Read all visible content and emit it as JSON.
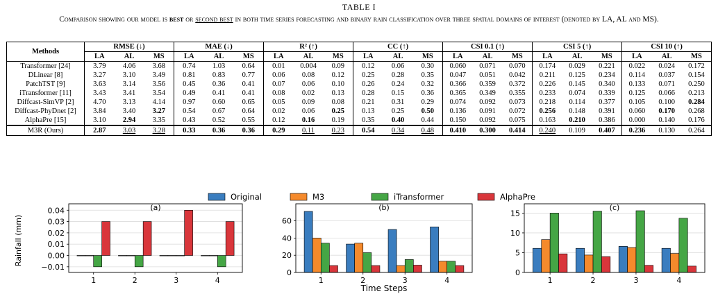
{
  "table": {
    "number": "TABLE I",
    "caption": {
      "p1": "Comparison showing our model is ",
      "best": "best",
      "p2": " or ",
      "second": "second best",
      "p3": " in both time series forecasting and binary rain classification over three spatial domains of interest (denoted by LA, AL and MS)."
    },
    "methods_header": "Methods",
    "metrics": [
      "RMSE (↓)",
      "MAE (↓)",
      "R² (↑)",
      "CC (↑)",
      "CSI 0.1 (↑)",
      "CSI 5 (↑)",
      "CSI 10 (↑)"
    ],
    "domains": [
      "LA",
      "AL",
      "MS"
    ],
    "rows": [
      {
        "method": "Transformer [24]",
        "values": [
          "3.79",
          "4.06",
          "3.68",
          "0.74",
          "1.03",
          "0.64",
          "0.01",
          "0.004",
          "0.09",
          "0.12",
          "0.06",
          "0.30",
          "0.060",
          "0.071",
          "0.070",
          "0.174",
          "0.029",
          "0.221",
          "0.022",
          "0.024",
          "0.172"
        ],
        "style": [
          "",
          "",
          "",
          "",
          "",
          "",
          "",
          "",
          "",
          "",
          "",
          "",
          "",
          "",
          "",
          "",
          "",
          "",
          "",
          "",
          ""
        ]
      },
      {
        "method": "DLinear [8]",
        "values": [
          "3.27",
          "3.10",
          "3.49",
          "0.81",
          "0.83",
          "0.77",
          "0.06",
          "0.08",
          "0.12",
          "0.25",
          "0.28",
          "0.35",
          "0.047",
          "0.051",
          "0.042",
          "0.211",
          "0.125",
          "0.234",
          "0.114",
          "0.037",
          "0.154"
        ],
        "style": [
          "",
          "",
          "",
          "",
          "",
          "",
          "",
          "",
          "",
          "",
          "",
          "",
          "",
          "",
          "",
          "",
          "",
          "",
          "",
          "",
          ""
        ]
      },
      {
        "method": "PatchTST [9]",
        "values": [
          "3.63",
          "3.14",
          "3.56",
          "0.45",
          "0.36",
          "0.41",
          "0.07",
          "0.06",
          "0.10",
          "0.26",
          "0.24",
          "0.32",
          "0.366",
          "0.359",
          "0.372",
          "0.226",
          "0.145",
          "0.340",
          "0.133",
          "0.071",
          "0.250"
        ],
        "style": [
          "",
          "",
          "",
          "",
          "",
          "",
          "",
          "",
          "",
          "",
          "",
          "",
          "",
          "",
          "",
          "",
          "",
          "",
          "",
          "",
          ""
        ]
      },
      {
        "method": "iTransformer [11]",
        "values": [
          "3.43",
          "3.41",
          "3.54",
          "0.49",
          "0.41",
          "0.41",
          "0.08",
          "0.02",
          "0.13",
          "0.28",
          "0.15",
          "0.36",
          "0.365",
          "0.349",
          "0.355",
          "0.233",
          "0.074",
          "0.339",
          "0.125",
          "0.066",
          "0.213"
        ],
        "style": [
          "",
          "",
          "",
          "",
          "",
          "",
          "",
          "",
          "",
          "",
          "",
          "",
          "",
          "",
          "",
          "",
          "",
          "",
          "",
          "",
          ""
        ]
      },
      {
        "method": "Diffcast-SimVP [2]",
        "values": [
          "4.70",
          "3.13",
          "4.14",
          "0.97",
          "0.60",
          "0.65",
          "0.05",
          "0.09",
          "0.08",
          "0.21",
          "0.31",
          "0.29",
          "0.074",
          "0.092",
          "0.073",
          "0.218",
          "0.114",
          "0.377",
          "0.105",
          "0.100",
          "0.284"
        ],
        "style": [
          "",
          "",
          "",
          "",
          "",
          "",
          "",
          "",
          "",
          "",
          "",
          "",
          "",
          "",
          "",
          "",
          "",
          "",
          "",
          "",
          "b"
        ]
      },
      {
        "method": "Diffcast-PhyDnet [2]",
        "values": [
          "3.84",
          "3.40",
          "3.27",
          "0.54",
          "0.67",
          "0.64",
          "0.02",
          "0.06",
          "0.25",
          "0.13",
          "0.25",
          "0.50",
          "0.136",
          "0.091",
          "0.072",
          "0.256",
          "0.148",
          "0.391",
          "0.060",
          "0.170",
          "0.268"
        ],
        "style": [
          "",
          "",
          "b",
          "",
          "",
          "",
          "",
          "",
          "b",
          "",
          "",
          "b",
          "",
          "",
          "",
          "b",
          "",
          "",
          "",
          "b",
          ""
        ]
      },
      {
        "method": "AlphaPre [15]",
        "values": [
          "3.10",
          "2.94",
          "3.35",
          "0.43",
          "0.52",
          "0.55",
          "0.12",
          "0.16",
          "0.19",
          "0.35",
          "0.40",
          "0.44",
          "0.150",
          "0.092",
          "0.075",
          "0.163",
          "0.210",
          "0.386",
          "0.000",
          "0.140",
          "0.176"
        ],
        "style": [
          "",
          "b",
          "",
          "",
          "",
          "",
          "",
          "b",
          "",
          "",
          "b",
          "",
          "",
          "",
          "",
          "",
          "b",
          "",
          "",
          "",
          ""
        ]
      },
      {
        "method": "M3R (Ours)",
        "values": [
          "2.87",
          "3.03",
          "3.28",
          "0.33",
          "0.36",
          "0.36",
          "0.29",
          "0.11",
          "0.23",
          "0.54",
          "0.34",
          "0.48",
          "0.410",
          "0.300",
          "0.414",
          "0.240",
          "0.109",
          "0.407",
          "0.236",
          "0.130",
          "0.264"
        ],
        "style": [
          "b",
          "u",
          "u",
          "b",
          "b",
          "b",
          "b",
          "u",
          "u",
          "b",
          "u",
          "u",
          "b",
          "b",
          "b",
          "u",
          "",
          "b",
          "b",
          "",
          ""
        ]
      }
    ]
  },
  "figure": {
    "legend": [
      "Original",
      "M3",
      "iTransformer",
      "AlphaPre"
    ],
    "colors": [
      "#3a7dbf",
      "#f58a2c",
      "#45a645",
      "#d9363b"
    ],
    "ylabel": "Rainfall (mm)",
    "xlabel": "Time Steps"
  },
  "chart_data": [
    {
      "type": "bar",
      "title": "(a)",
      "categories": [
        "1",
        "2",
        "3",
        "4"
      ],
      "ylim": [
        -0.015,
        0.042
      ],
      "yticks": [
        "−0.01",
        "0.00",
        "0.01",
        "0.02",
        "0.03",
        "0.04"
      ],
      "ytick_values": [
        -0.01,
        0.0,
        0.01,
        0.02,
        0.03,
        0.04
      ],
      "ylabel": "Rainfall (mm)",
      "series": [
        {
          "name": "Original",
          "values": [
            0,
            0,
            0,
            0
          ]
        },
        {
          "name": "M3",
          "values": [
            0,
            0,
            0,
            0
          ]
        },
        {
          "name": "iTransformer",
          "values": [
            -0.01,
            -0.01,
            0,
            -0.01
          ]
        },
        {
          "name": "AlphaPre",
          "values": [
            0.03,
            0.03,
            0.04,
            0.03
          ]
        }
      ]
    },
    {
      "type": "bar",
      "title": "(b)",
      "categories": [
        "1",
        "2",
        "3",
        "4"
      ],
      "ylim": [
        0,
        75
      ],
      "yticks": [
        "0",
        "20",
        "40",
        "60"
      ],
      "ytick_values": [
        0,
        20,
        40,
        60
      ],
      "xlabel": "Time Steps",
      "series": [
        {
          "name": "Original",
          "values": [
            71,
            33,
            50,
            53
          ]
        },
        {
          "name": "M3",
          "values": [
            40,
            34,
            8,
            13
          ]
        },
        {
          "name": "iTransformer",
          "values": [
            34,
            23,
            15,
            13
          ]
        },
        {
          "name": "AlphaPre",
          "values": [
            8,
            8,
            8.5,
            8
          ]
        }
      ]
    },
    {
      "type": "bar",
      "title": "(c)",
      "categories": [
        "1",
        "2",
        "3",
        "4"
      ],
      "ylim": [
        0,
        16.3
      ],
      "yticks": [
        "0",
        "5",
        "10",
        "15"
      ],
      "ytick_values": [
        0,
        5,
        10,
        15
      ],
      "series": [
        {
          "name": "Original",
          "values": [
            6.1,
            6.1,
            6.6,
            6.1
          ]
        },
        {
          "name": "M3",
          "values": [
            8.3,
            4.4,
            6.3,
            4.8
          ]
        },
        {
          "name": "iTransformer",
          "values": [
            15.0,
            15.5,
            15.6,
            13.7
          ]
        },
        {
          "name": "AlphaPre",
          "values": [
            4.7,
            4.0,
            1.8,
            1.6
          ]
        }
      ]
    }
  ]
}
